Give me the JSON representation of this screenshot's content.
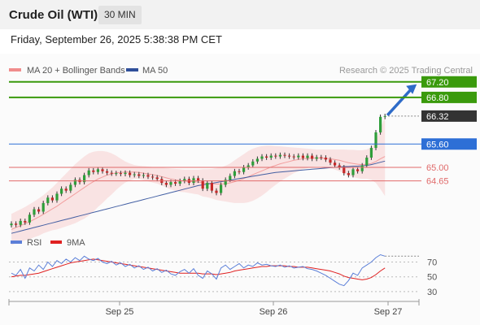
{
  "header": {
    "title": "Crude Oil (WTI)",
    "interval": "30 MIN",
    "timestamp": "Friday, September 26, 2025 5:38:38 PM CET"
  },
  "colors": {
    "bollinger": "#f08c8c",
    "ma50": "#2f4f9a",
    "resistance": "#3a9a0c",
    "pivot": "#2d6fd6",
    "support": "#e06a6a",
    "current": "#333333",
    "rsi": "#5b7fd8",
    "rsi_ma": "#e02020"
  },
  "chart_data": [
    {
      "type": "candlestick",
      "legend": [
        {
          "name": "MA 20 + Bollinger Bands",
          "color": "#f08c8c"
        },
        {
          "name": "MA 50",
          "color": "#2f4f9a"
        }
      ],
      "copyright": "Research © 2025 Trading Central",
      "y_range": [
        63.2,
        67.3
      ],
      "x_labels": [
        "Sep 25",
        "Sep 26",
        "Sep 27"
      ],
      "levels": [
        {
          "value": 67.2,
          "label": "67.20",
          "kind": "resistance"
        },
        {
          "value": 66.8,
          "label": "66.80",
          "kind": "resistance"
        },
        {
          "value": 66.32,
          "label": "66.32",
          "kind": "current"
        },
        {
          "value": 65.6,
          "label": "65.60",
          "kind": "pivot"
        },
        {
          "value": 65.0,
          "label": "65.00",
          "kind": "support"
        },
        {
          "value": 64.65,
          "label": "64.65",
          "kind": "support"
        }
      ],
      "close": [
        63.55,
        63.52,
        63.62,
        63.58,
        63.78,
        63.92,
        63.86,
        64.08,
        64.22,
        64.15,
        64.32,
        64.45,
        64.4,
        64.55,
        64.68,
        64.62,
        64.8,
        64.92,
        64.88,
        64.95,
        64.9,
        64.86,
        64.84,
        64.85,
        64.83,
        64.86,
        64.8,
        64.82,
        64.78,
        64.8,
        64.76,
        64.74,
        64.7,
        64.6,
        64.55,
        64.62,
        64.58,
        64.65,
        64.7,
        64.6,
        64.72,
        64.66,
        64.45,
        64.6,
        64.4,
        64.34,
        64.55,
        64.68,
        64.78,
        64.9,
        64.88,
        65.0,
        65.05,
        65.15,
        65.22,
        65.28,
        65.25,
        65.3,
        65.28,
        65.32,
        65.3,
        65.28,
        65.26,
        65.3,
        65.24,
        65.3,
        65.22,
        65.26,
        65.25,
        65.2,
        65.12,
        65.05,
        65.0,
        64.85,
        64.8,
        64.95,
        64.9,
        65.05,
        65.25,
        65.5,
        65.9,
        66.3,
        66.32
      ],
      "ma20": [
        63.4,
        63.45,
        63.5,
        63.55,
        63.6,
        63.66,
        63.72,
        63.79,
        63.86,
        63.93,
        64.0,
        64.08,
        64.16,
        64.24,
        64.32,
        64.4,
        64.48,
        64.56,
        64.63,
        64.7,
        64.75,
        64.8,
        64.83,
        64.86,
        64.87,
        64.88,
        64.88,
        64.88,
        64.87,
        64.85,
        64.83,
        64.81,
        64.79,
        64.76,
        64.73,
        64.7,
        64.68,
        64.66,
        64.65,
        64.64,
        64.63,
        64.62,
        64.6,
        64.59,
        64.58,
        64.57,
        64.57,
        64.58,
        64.6,
        64.63,
        64.67,
        64.71,
        64.76,
        64.81,
        64.86,
        64.91,
        64.96,
        65.01,
        65.05,
        65.09,
        65.12,
        65.15,
        65.18,
        65.2,
        65.22,
        65.23,
        65.24,
        65.24,
        65.24,
        65.23,
        65.22,
        65.2,
        65.18,
        65.15,
        65.12,
        65.1,
        65.08,
        65.07,
        65.08,
        65.1,
        65.15,
        65.22,
        65.28
      ],
      "bb_upper": [
        63.8,
        63.86,
        63.92,
        63.98,
        64.05,
        64.12,
        64.2,
        64.28,
        64.38,
        64.48,
        64.6,
        64.72,
        64.84,
        64.96,
        65.08,
        65.18,
        65.28,
        65.36,
        65.4,
        65.42,
        65.42,
        65.4,
        65.36,
        65.3,
        65.22,
        65.15,
        65.1,
        65.06,
        65.04,
        65.03,
        65.02,
        65.01,
        65.0,
        64.99,
        64.98,
        64.97,
        64.96,
        64.95,
        64.94,
        64.94,
        64.94,
        64.94,
        64.95,
        64.95,
        64.96,
        64.98,
        65.0,
        65.04,
        65.1,
        65.18,
        65.26,
        65.34,
        65.42,
        65.48,
        65.52,
        65.55,
        65.56,
        65.56,
        65.55,
        65.54,
        65.53,
        65.52,
        65.51,
        65.5,
        65.49,
        65.48,
        65.47,
        65.46,
        65.46,
        65.46,
        65.46,
        65.46,
        65.46,
        65.46,
        65.45,
        65.45,
        65.44,
        65.44,
        65.46,
        65.52,
        65.7,
        66.0,
        66.3
      ],
      "bb_lower": [
        63.0,
        63.04,
        63.08,
        63.12,
        63.15,
        63.2,
        63.24,
        63.3,
        63.34,
        63.38,
        63.4,
        63.44,
        63.48,
        63.52,
        63.56,
        63.62,
        63.68,
        63.76,
        63.86,
        63.98,
        64.08,
        64.2,
        64.3,
        64.42,
        64.52,
        64.61,
        64.66,
        64.7,
        64.7,
        64.67,
        64.64,
        64.61,
        64.58,
        64.53,
        64.48,
        64.43,
        64.4,
        64.37,
        64.36,
        64.34,
        64.32,
        64.3,
        64.25,
        64.23,
        64.2,
        64.16,
        64.14,
        64.12,
        64.1,
        64.08,
        64.08,
        64.08,
        64.1,
        64.14,
        64.2,
        64.27,
        64.36,
        64.46,
        64.55,
        64.64,
        64.71,
        64.78,
        64.85,
        64.9,
        64.95,
        64.98,
        65.01,
        65.02,
        65.02,
        65.0,
        64.98,
        64.94,
        64.9,
        64.84,
        64.79,
        64.75,
        64.72,
        64.7,
        64.7,
        64.68,
        64.6,
        64.44,
        64.26
      ],
      "ma50": [
        63.3,
        63.33,
        63.36,
        63.39,
        63.42,
        63.45,
        63.48,
        63.51,
        63.54,
        63.57,
        63.6,
        63.63,
        63.66,
        63.69,
        63.72,
        63.75,
        63.78,
        63.81,
        63.84,
        63.87,
        63.9,
        63.93,
        63.96,
        63.99,
        64.02,
        64.05,
        64.08,
        64.11,
        64.14,
        64.17,
        64.2,
        64.23,
        64.26,
        64.29,
        64.32,
        64.35,
        64.38,
        64.41,
        64.44,
        64.47,
        64.5,
        64.53,
        64.55,
        64.57,
        64.59,
        64.61,
        64.63,
        64.65,
        64.67,
        64.69,
        64.71,
        64.73,
        64.75,
        64.77,
        64.79,
        64.81,
        64.83,
        64.85,
        64.87,
        64.88,
        64.89,
        64.9,
        64.91,
        64.92,
        64.93,
        64.94,
        64.95,
        64.96,
        64.97,
        64.98,
        64.99,
        65.0,
        65.01,
        65.02,
        65.02,
        65.03,
        65.03,
        65.04,
        65.05,
        65.07,
        65.1,
        65.13,
        65.16
      ]
    },
    {
      "type": "line",
      "legend": [
        {
          "name": "RSI",
          "color": "#5b7fd8"
        },
        {
          "name": "9MA",
          "color": "#e02020"
        }
      ],
      "ylim": [
        20,
        86
      ],
      "y_ticks": [
        70,
        50,
        30
      ],
      "rsi": [
        55,
        52,
        60,
        48,
        62,
        58,
        66,
        60,
        70,
        64,
        72,
        68,
        74,
        70,
        76,
        72,
        78,
        74,
        72,
        75,
        70,
        68,
        71,
        66,
        69,
        64,
        67,
        62,
        65,
        60,
        63,
        58,
        61,
        56,
        59,
        54,
        52,
        57,
        60,
        55,
        61,
        52,
        48,
        58,
        54,
        47,
        62,
        66,
        60,
        64,
        68,
        62,
        66,
        64,
        69,
        66,
        67,
        65,
        64,
        66,
        63,
        65,
        62,
        63,
        64,
        61,
        60,
        58,
        55,
        52,
        48,
        44,
        40,
        38,
        45,
        55,
        52,
        62,
        66,
        70,
        76,
        80,
        78
      ],
      "rsi_ma": [
        50,
        51,
        52,
        52,
        53,
        54,
        55,
        57,
        59,
        61,
        63,
        65,
        67,
        69,
        70,
        71,
        72,
        73,
        74,
        73,
        72,
        71,
        70,
        69,
        68,
        67,
        66,
        65,
        64,
        63,
        62,
        61,
        60,
        59,
        58,
        57,
        56,
        55,
        55,
        55,
        55,
        55,
        54,
        54,
        54,
        53,
        54,
        55,
        56,
        58,
        59,
        60,
        61,
        62,
        63,
        64,
        64,
        65,
        65,
        65,
        65,
        64,
        64,
        63,
        63,
        63,
        62,
        61,
        60,
        59,
        58,
        56,
        54,
        51,
        49,
        48,
        47,
        46,
        47,
        49,
        53,
        58,
        62
      ]
    }
  ]
}
